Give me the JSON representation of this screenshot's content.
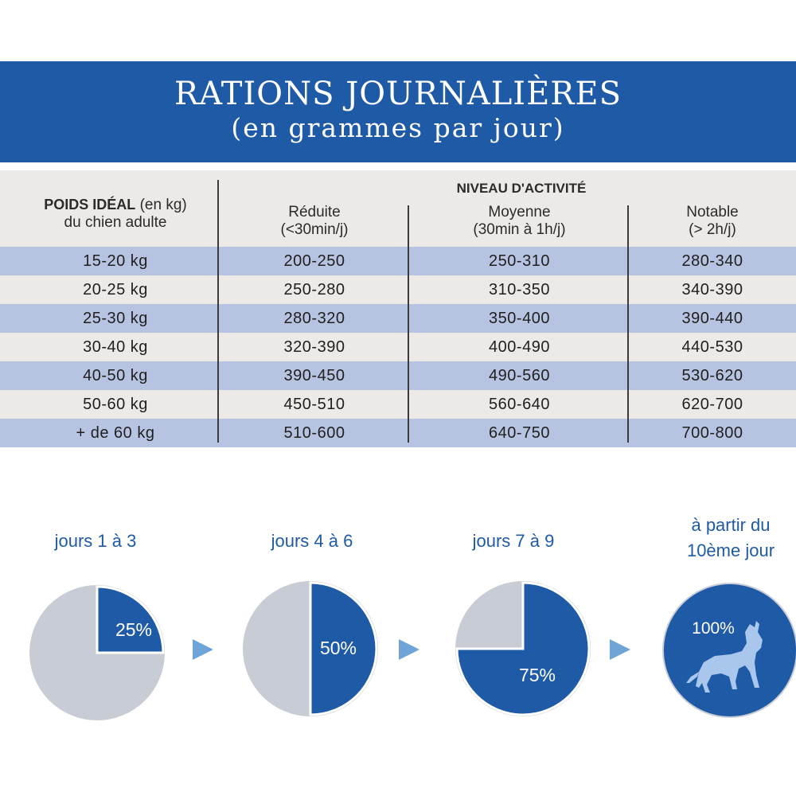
{
  "header": {
    "title": "RATIONS JOURNALIÈRES",
    "subtitle": "(en grammes par jour)"
  },
  "table": {
    "weight_header_bold": "POIDS IDÉAL",
    "weight_header_unit": "(en kg)",
    "weight_header_line2": "du chien adulte",
    "group_header": "NIVEAU D'ACTIVITÉ",
    "columns": [
      {
        "label": "Réduite",
        "sub": "(<30min/j)"
      },
      {
        "label": "Moyenne",
        "sub": "(30min à 1h/j)"
      },
      {
        "label": "Notable",
        "sub": "(> 2h/j)"
      }
    ],
    "rows": [
      {
        "weight": "15-20 kg",
        "values": [
          "200-250",
          "250-310",
          "280-340"
        ]
      },
      {
        "weight": "20-25 kg",
        "values": [
          "250-280",
          "310-350",
          "340-390"
        ]
      },
      {
        "weight": "25-30 kg",
        "values": [
          "280-320",
          "350-400",
          "390-440"
        ]
      },
      {
        "weight": "30-40 kg",
        "values": [
          "320-390",
          "400-490",
          "440-530"
        ]
      },
      {
        "weight": "40-50 kg",
        "values": [
          "390-450",
          "490-560",
          "530-620"
        ]
      },
      {
        "weight": "50-60 kg",
        "values": [
          "450-510",
          "560-640",
          "620-700"
        ]
      },
      {
        "weight": "+ de 60 kg",
        "values": [
          "510-600",
          "640-750",
          "700-800"
        ]
      }
    ]
  },
  "transition": {
    "steps": [
      {
        "label": "jours 1 à 3",
        "percent_label": "25%",
        "fraction": 0.25
      },
      {
        "label": "jours 4 à 6",
        "percent_label": "50%",
        "fraction": 0.5
      },
      {
        "label": "jours 7 à 9",
        "percent_label": "75%",
        "fraction": 0.75
      },
      {
        "label_line1": "à partir du",
        "label_line2": "10ème jour",
        "percent_label": "100%",
        "fraction": 1.0
      }
    ],
    "colors": {
      "new_food": "#1f5aa6",
      "old_food": "#c8ccd4",
      "arrow": "#6fa4d8",
      "label": "#1f5aa6",
      "dog_silhouette": "#a9c7ec"
    },
    "icons": [
      "arrow-right-icon",
      "howling-dog-icon"
    ]
  }
}
